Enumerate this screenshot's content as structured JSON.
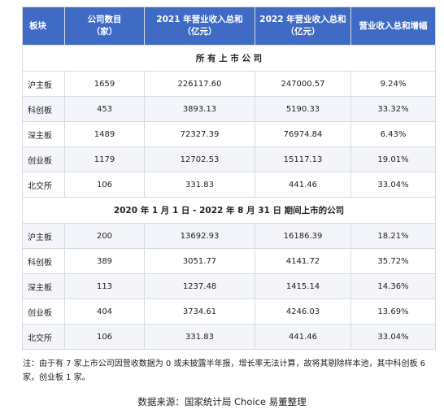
{
  "headers": [
    "板块",
    "公司数目\n（家）",
    "2021 年营业收入总和\n（亿元）",
    "2022 年营业收入总和\n（亿元）",
    "营业收入总和增幅"
  ],
  "sections": [
    {
      "title": "所 有 上 市 公 司",
      "rows": [
        [
          "沪主板",
          "1659",
          "226117.60",
          "247000.57",
          "9.24%"
        ],
        [
          "科创板",
          "453",
          "3893.13",
          "5190.33",
          "33.32%"
        ],
        [
          "深主板",
          "1489",
          "72327.39",
          "76974.84",
          "6.43%"
        ],
        [
          "创业板",
          "1179",
          "12702.53",
          "15117.13",
          "19.01%"
        ],
        [
          "北交所",
          "106",
          "331.83",
          "441.46",
          "33.04%"
        ]
      ]
    },
    {
      "title": "2020 年 1 月 1 日 - 2022 年 8 月 31 日 期间上市的公司",
      "rows": [
        [
          "沪主板",
          "200",
          "13692.93",
          "16186.39",
          "18.21%"
        ],
        [
          "科创板",
          "389",
          "3051.77",
          "4141.72",
          "35.72%"
        ],
        [
          "深主板",
          "113",
          "1237.48",
          "1415.14",
          "14.36%"
        ],
        [
          "创业板",
          "404",
          "3734.61",
          "4246.03",
          "13.69%"
        ],
        [
          "北交所",
          "106",
          "331.83",
          "441.46",
          "33.04%"
        ]
      ]
    }
  ],
  "note": "注：由于有 7 家上市公司因营收数据为 0 或未披露半年报，增长率无法计算，故将其剔除样本池，其中科创板 6 家，创业板 1 家。",
  "source": "数据来源：国家统计局 Choice 易董整理",
  "colors": {
    "header_bg": "#3f6bc4",
    "alt_row_bg": "#f3f5fa",
    "border": "#d6dbe3"
  }
}
